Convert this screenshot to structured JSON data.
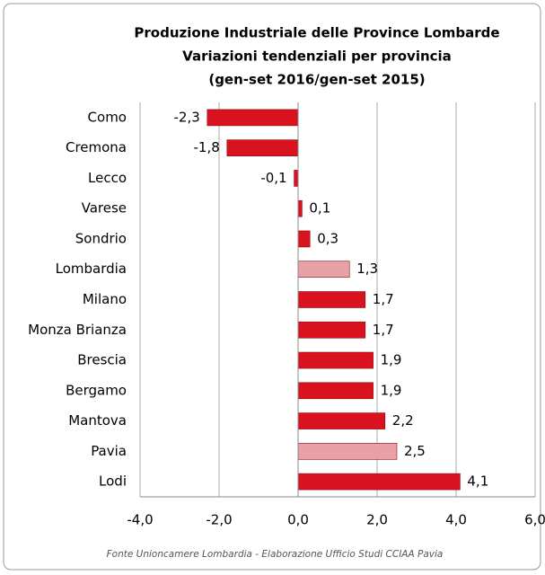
{
  "chart_data": {
    "type": "barh",
    "title": [
      "Produzione Industriale delle Province Lombarde",
      "Variazioni tendenziali per provincia",
      "(gen-set 2016/gen-set 2015)"
    ],
    "categories": [
      "Como",
      "Cremona",
      "Lecco",
      "Varese",
      "Sondrio",
      "Lombardia",
      "Milano",
      "Monza Brianza",
      "Brescia",
      "Bergamo",
      "Mantova",
      "Pavia",
      "Lodi"
    ],
    "values": [
      -2.3,
      -1.8,
      -0.1,
      0.1,
      0.3,
      1.3,
      1.7,
      1.7,
      1.9,
      1.9,
      2.2,
      2.5,
      4.1
    ],
    "value_labels": [
      "-2,3",
      "-1,8",
      "-0,1",
      "0,1",
      "0,3",
      "1,3",
      "1,7",
      "1,7",
      "1,9",
      "1,9",
      "2,2",
      "2,5",
      "4,1"
    ],
    "colors": [
      "#d9121f",
      "#d9121f",
      "#d9121f",
      "#d9121f",
      "#d9121f",
      "#e9a1a8",
      "#d9121f",
      "#d9121f",
      "#d9121f",
      "#d9121f",
      "#d9121f",
      "#e9a1a8",
      "#d9121f"
    ],
    "xlim": [
      -4,
      6
    ],
    "xticks": [
      {
        "value": -4,
        "label": "-4,0"
      },
      {
        "value": -2,
        "label": "-2,0"
      },
      {
        "value": 0,
        "label": "0,0"
      },
      {
        "value": 2,
        "label": "2,0"
      },
      {
        "value": 4,
        "label": "4,0"
      },
      {
        "value": 6,
        "label": "6,0"
      }
    ],
    "grid": true,
    "source": "Fonte Unioncamere Lombardia - Elaborazione Ufficio Studi CCIAA Pavia"
  }
}
